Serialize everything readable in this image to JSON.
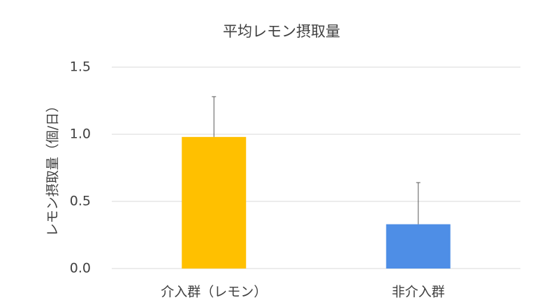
{
  "chart_data": {
    "type": "bar",
    "title": "平均レモン摂取量",
    "y_label": "レモン摂取量（個/日）",
    "categories": [
      "介入群（レモン）",
      "非介入群"
    ],
    "values": [
      0.98,
      0.33
    ],
    "errors": [
      0.3,
      0.31
    ],
    "colors": [
      "#ffc000",
      "#4e8ee6"
    ],
    "ylim": [
      0,
      1.5
    ],
    "yticks": [
      {
        "value": 0,
        "label": "0.0"
      },
      0.5,
      {
        "value": 1,
        "label": "1.0"
      },
      1.5
    ],
    "grid": true
  }
}
